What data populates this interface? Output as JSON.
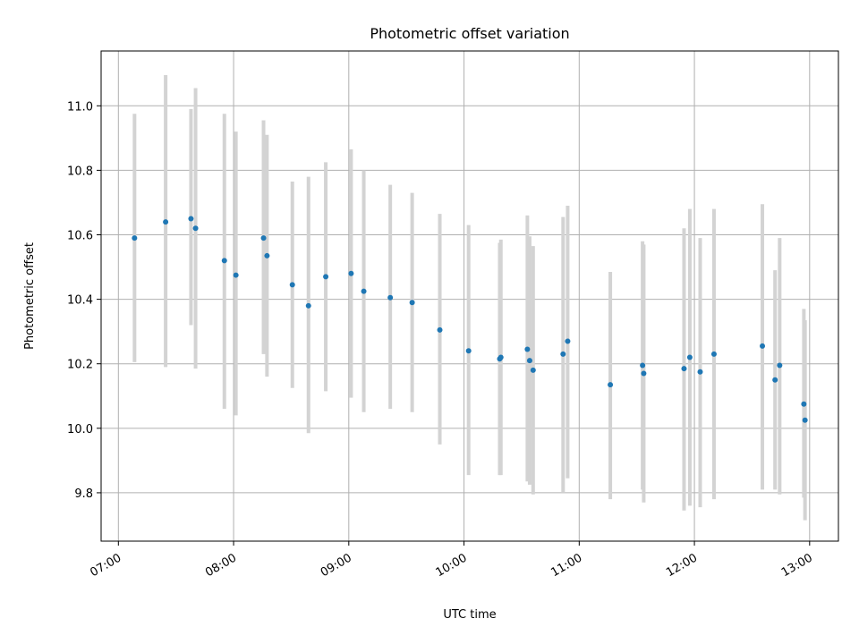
{
  "chart_data": {
    "type": "scatter",
    "title": "Photometric offset variation",
    "xlabel": "UTC time",
    "ylabel": "Photometric offset",
    "x_tick_labels": [
      "07:00",
      "08:00",
      "09:00",
      "10:00",
      "11:00",
      "12:00",
      "13:00"
    ],
    "x_ticks_hours": [
      7,
      8,
      9,
      10,
      11,
      12,
      13
    ],
    "xlim_hours": [
      6.85,
      13.25
    ],
    "y_ticks": [
      9.8,
      10.0,
      10.2,
      10.4,
      10.6,
      10.8,
      11.0
    ],
    "y_tick_labels": [
      "9.8",
      "10.0",
      "10.2",
      "10.4",
      "10.6",
      "10.8",
      "11.0"
    ],
    "ylim": [
      9.65,
      11.17
    ],
    "grid": true,
    "colors": {
      "point": "#1f77b4",
      "errorbar": "#d3d3d3",
      "grid": "#b0b0b0"
    },
    "points": [
      {
        "t": 7.14,
        "y": 10.59,
        "lo": 10.205,
        "hi": 10.975
      },
      {
        "t": 7.41,
        "y": 10.64,
        "lo": 10.19,
        "hi": 11.095
      },
      {
        "t": 7.63,
        "y": 10.65,
        "lo": 10.32,
        "hi": 10.99
      },
      {
        "t": 7.67,
        "y": 10.62,
        "lo": 10.185,
        "hi": 11.055
      },
      {
        "t": 7.92,
        "y": 10.52,
        "lo": 10.06,
        "hi": 10.975
      },
      {
        "t": 8.02,
        "y": 10.475,
        "lo": 10.04,
        "hi": 10.92
      },
      {
        "t": 8.26,
        "y": 10.59,
        "lo": 10.23,
        "hi": 10.955
      },
      {
        "t": 8.29,
        "y": 10.535,
        "lo": 10.16,
        "hi": 10.91
      },
      {
        "t": 8.51,
        "y": 10.445,
        "lo": 10.125,
        "hi": 10.765
      },
      {
        "t": 8.65,
        "y": 10.38,
        "lo": 9.985,
        "hi": 10.78
      },
      {
        "t": 8.8,
        "y": 10.47,
        "lo": 10.115,
        "hi": 10.825
      },
      {
        "t": 9.02,
        "y": 10.48,
        "lo": 10.095,
        "hi": 10.865
      },
      {
        "t": 9.13,
        "y": 10.425,
        "lo": 10.05,
        "hi": 10.8
      },
      {
        "t": 9.36,
        "y": 10.405,
        "lo": 10.06,
        "hi": 10.755
      },
      {
        "t": 9.55,
        "y": 10.39,
        "lo": 10.05,
        "hi": 10.73
      },
      {
        "t": 9.79,
        "y": 10.305,
        "lo": 9.95,
        "hi": 10.665
      },
      {
        "t": 10.04,
        "y": 10.24,
        "lo": 9.855,
        "hi": 10.63
      },
      {
        "t": 10.31,
        "y": 10.215,
        "lo": 9.855,
        "hi": 10.575
      },
      {
        "t": 10.32,
        "y": 10.22,
        "lo": 9.855,
        "hi": 10.585
      },
      {
        "t": 10.55,
        "y": 10.245,
        "lo": 9.835,
        "hi": 10.66
      },
      {
        "t": 10.57,
        "y": 10.21,
        "lo": 9.825,
        "hi": 10.595
      },
      {
        "t": 10.6,
        "y": 10.18,
        "lo": 9.795,
        "hi": 10.565
      },
      {
        "t": 10.86,
        "y": 10.23,
        "lo": 9.8,
        "hi": 10.655
      },
      {
        "t": 10.9,
        "y": 10.27,
        "lo": 9.845,
        "hi": 10.69
      },
      {
        "t": 11.27,
        "y": 10.135,
        "lo": 9.78,
        "hi": 10.485
      },
      {
        "t": 11.55,
        "y": 10.195,
        "lo": 9.81,
        "hi": 10.58
      },
      {
        "t": 11.56,
        "y": 10.17,
        "lo": 9.77,
        "hi": 10.57
      },
      {
        "t": 11.91,
        "y": 10.185,
        "lo": 9.745,
        "hi": 10.62
      },
      {
        "t": 11.96,
        "y": 10.22,
        "lo": 9.76,
        "hi": 10.68
      },
      {
        "t": 12.05,
        "y": 10.175,
        "lo": 9.755,
        "hi": 10.59
      },
      {
        "t": 12.17,
        "y": 10.23,
        "lo": 9.78,
        "hi": 10.68
      },
      {
        "t": 12.59,
        "y": 10.255,
        "lo": 9.81,
        "hi": 10.695
      },
      {
        "t": 12.7,
        "y": 10.15,
        "lo": 9.81,
        "hi": 10.49
      },
      {
        "t": 12.74,
        "y": 10.195,
        "lo": 9.795,
        "hi": 10.59
      },
      {
        "t": 12.95,
        "y": 10.075,
        "lo": 9.785,
        "hi": 10.37
      },
      {
        "t": 12.96,
        "y": 10.025,
        "lo": 9.715,
        "hi": 10.335
      }
    ]
  }
}
